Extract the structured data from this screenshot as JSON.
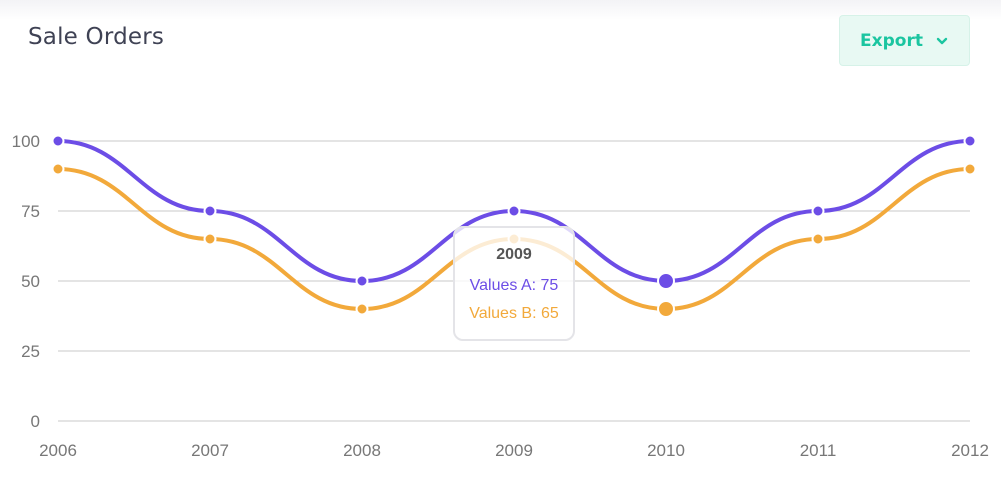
{
  "header": {
    "title": "Sale Orders",
    "export_label": "Export"
  },
  "colors": {
    "series_a": "#6c4de6",
    "series_b": "#f2a93b",
    "grid": "#c8c8c8",
    "tick_text": "#777777",
    "export_text": "#1bc5a0",
    "export_bg": "#e8f9f3"
  },
  "icons": {
    "export_chevron": "chevron-down-icon"
  },
  "chart_data": {
    "type": "line",
    "title": "",
    "xlabel": "",
    "ylabel": "",
    "x": [
      "2006",
      "2007",
      "2008",
      "2009",
      "2010",
      "2011",
      "2012"
    ],
    "ylim": [
      0,
      100
    ],
    "yticks": [
      0,
      25,
      50,
      75,
      100
    ],
    "grid": true,
    "curve": "smooth",
    "series": [
      {
        "name": "Values A",
        "values": [
          100,
          75,
          50,
          75,
          50,
          75,
          100
        ]
      },
      {
        "name": "Values B",
        "values": [
          90,
          65,
          40,
          65,
          40,
          65,
          90
        ]
      }
    ],
    "highlighted_index": 4,
    "tooltip": {
      "title": "2009",
      "rows": [
        "Values A: 75",
        "Values B: 65"
      ]
    }
  }
}
